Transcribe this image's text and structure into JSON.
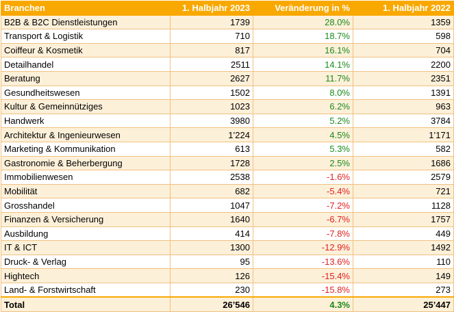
{
  "headers": [
    "Branchen",
    "1. Halbjahr 2023",
    "Veränderung in %",
    "1. Halbjahr 2022"
  ],
  "rows": [
    {
      "branche": "B2B & B2C Dienstleistungen",
      "h2023": "1739",
      "change": "28.0%",
      "h2022": "1359",
      "trend": "pos"
    },
    {
      "branche": "Transport & Logistik",
      "h2023": "710",
      "change": "18.7%",
      "h2022": "598",
      "trend": "pos"
    },
    {
      "branche": "Coiffeur & Kosmetik",
      "h2023": "817",
      "change": "16.1%",
      "h2022": "704",
      "trend": "pos"
    },
    {
      "branche": "Detailhandel",
      "h2023": "2511",
      "change": "14.1%",
      "h2022": "2200",
      "trend": "pos"
    },
    {
      "branche": "Beratung",
      "h2023": "2627",
      "change": "11.7%",
      "h2022": "2351",
      "trend": "pos"
    },
    {
      "branche": "Gesundheitswesen",
      "h2023": "1502",
      "change": "8.0%",
      "h2022": "1391",
      "trend": "pos"
    },
    {
      "branche": "Kultur & Gemeinnütziges",
      "h2023": "1023",
      "change": "6.2%",
      "h2022": "963",
      "trend": "pos"
    },
    {
      "branche": "Handwerk",
      "h2023": "3980",
      "change": "5.2%",
      "h2022": "3784",
      "trend": "pos"
    },
    {
      "branche": "Architektur & Ingenieurwesen",
      "h2023": "1’224",
      "change": "4.5%",
      "h2022": "1’171",
      "trend": "pos"
    },
    {
      "branche": "Marketing & Kommunikation",
      "h2023": "613",
      "change": "5.3%",
      "h2022": "582",
      "trend": "pos"
    },
    {
      "branche": "Gastronomie & Beherbergung",
      "h2023": "1728",
      "change": "2.5%",
      "h2022": "1686",
      "trend": "pos"
    },
    {
      "branche": "Immobilienwesen",
      "h2023": "2538",
      "change": "-1.6%",
      "h2022": "2579",
      "trend": "neg"
    },
    {
      "branche": "Mobilität",
      "h2023": "682",
      "change": "-5.4%",
      "h2022": "721",
      "trend": "neg"
    },
    {
      "branche": "Grosshandel",
      "h2023": "1047",
      "change": "-7.2%",
      "h2022": "1128",
      "trend": "neg"
    },
    {
      "branche": "Finanzen & Versicherung",
      "h2023": "1640",
      "change": "-6.7%",
      "h2022": "1757",
      "trend": "neg"
    },
    {
      "branche": "Ausbildung",
      "h2023": "414",
      "change": "-7.8%",
      "h2022": "449",
      "trend": "neg"
    },
    {
      "branche": "IT & ICT",
      "h2023": "1300",
      "change": "-12.9%",
      "h2022": "1492",
      "trend": "neg"
    },
    {
      "branche": "Druck- & Verlag",
      "h2023": "95",
      "change": "-13.6%",
      "h2022": "110",
      "trend": "neg"
    },
    {
      "branche": "Hightech",
      "h2023": "126",
      "change": "-15.4%",
      "h2022": "149",
      "trend": "neg"
    },
    {
      "branche": "Land- & Forstwirtschaft",
      "h2023": "230",
      "change": "-15.8%",
      "h2022": "273",
      "trend": "neg"
    }
  ],
  "total": {
    "branche": "Total",
    "h2023": "26’546",
    "change": "4.3%",
    "h2022": "25’447",
    "trend": "pos"
  },
  "colors": {
    "header": "#f9a800",
    "positive": "#1a8a1a",
    "negative": "#e02020",
    "stripe": "#fdf0d9"
  }
}
